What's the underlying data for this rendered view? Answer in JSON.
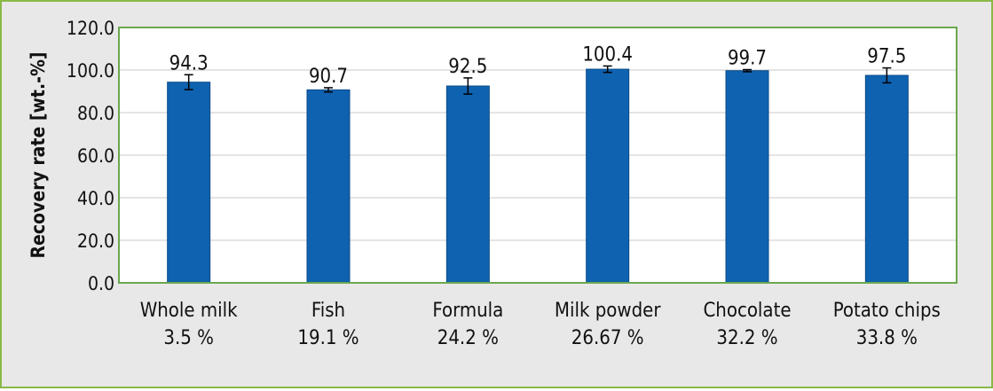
{
  "chart_data": {
    "type": "bar",
    "categories": [
      [
        "Whole milk",
        "3.5 %"
      ],
      [
        "Fish",
        "19.1 %"
      ],
      [
        "Formula",
        "24.2 %"
      ],
      [
        "Milk powder",
        "26.67 %"
      ],
      [
        "Chocolate",
        "32.2 %"
      ],
      [
        "Potato chips",
        "33.8 %"
      ]
    ],
    "values": [
      94.3,
      90.7,
      92.5,
      100.4,
      99.7,
      97.5
    ],
    "value_labels": [
      "94.3",
      "90.7",
      "92.5",
      "100.4",
      "99.7",
      "97.5"
    ],
    "errors": [
      3.5,
      1.0,
      3.8,
      1.5,
      0.5,
      3.5
    ],
    "ylabel": "Recovery rate [wt.-%]",
    "ylim": [
      0,
      120
    ],
    "yticks": [
      "0.0",
      "20.0",
      "40.0",
      "60.0",
      "80.0",
      "100.0",
      "120.0"
    ],
    "grid": true,
    "colors": {
      "bar": "#0f62b0",
      "bar_border": "#0a4a88",
      "frame_border": "#8ab848",
      "plot_border": "#6aa84f",
      "background": "#e8e8e8",
      "plot_background": "#ffffff",
      "gridline": "#c8c8c8"
    }
  }
}
